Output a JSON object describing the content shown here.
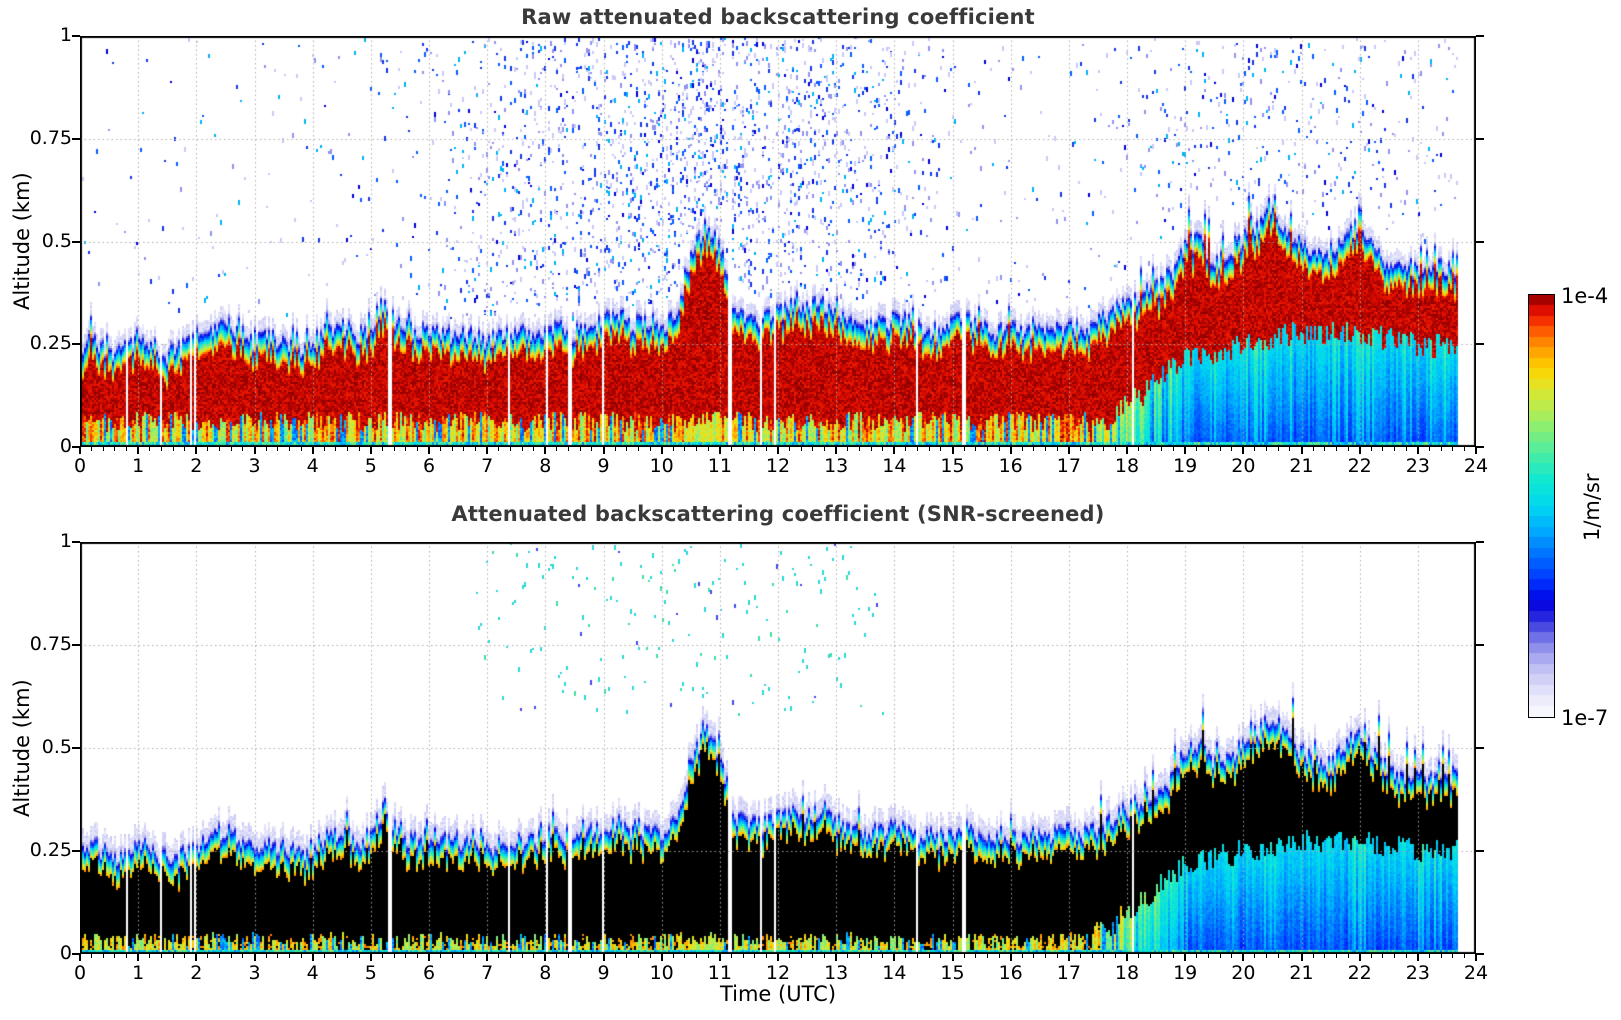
{
  "chart_data": [
    {
      "type": "heatmap",
      "title": "Raw attenuated backscattering coefficient",
      "xlabel": "",
      "ylabel": "Altitude (km)",
      "xlim": [
        0,
        24
      ],
      "ylim": [
        0,
        1
      ],
      "x_ticks": [
        0,
        1,
        2,
        3,
        4,
        5,
        6,
        7,
        8,
        9,
        10,
        11,
        12,
        13,
        14,
        15,
        16,
        17,
        18,
        19,
        20,
        21,
        22,
        23,
        24
      ],
      "x_minor_tick_step_hours": 0.2,
      "y_ticks": [
        0,
        0.25,
        0.5,
        0.75,
        1
      ],
      "y_tick_labels": [
        "0",
        "0.25",
        "0.5",
        "0.75",
        "1"
      ],
      "grid": "dotted, vertical each hour, horizontal at 0.25/0.5/0.75",
      "data_end_time_utc": 23.7,
      "core_render": "dark-red",
      "structure": {
        "layer_top_km": {
          "t_step_hours": 0.25,
          "values": [
            0.26,
            0.27,
            0.25,
            0.24,
            0.28,
            0.26,
            0.24,
            0.25,
            0.27,
            0.3,
            0.31,
            0.29,
            0.26,
            0.28,
            0.27,
            0.25,
            0.27,
            0.3,
            0.31,
            0.28,
            0.3,
            0.37,
            0.3,
            0.29,
            0.3,
            0.29,
            0.28,
            0.29,
            0.27,
            0.28,
            0.29,
            0.28,
            0.3,
            0.31,
            0.29,
            0.31,
            0.32,
            0.33,
            0.31,
            0.32,
            0.31,
            0.33,
            0.48,
            0.55,
            0.5,
            0.35,
            0.32,
            0.33,
            0.34,
            0.36,
            0.34,
            0.37,
            0.33,
            0.31,
            0.3,
            0.31,
            0.32,
            0.31,
            0.3,
            0.29,
            0.31,
            0.32,
            0.3,
            0.29,
            0.3,
            0.29,
            0.3,
            0.3,
            0.31,
            0.3,
            0.32,
            0.34,
            0.36,
            0.38,
            0.4,
            0.43,
            0.5,
            0.52,
            0.46,
            0.48,
            0.52,
            0.55,
            0.58,
            0.54,
            0.5,
            0.48,
            0.47,
            0.52,
            0.55,
            0.5,
            0.46,
            0.44,
            0.45,
            0.44,
            0.45,
            0.43
          ]
        },
        "layer_base_km": {
          "t_step_hours": 1,
          "values": [
            0,
            0,
            0,
            0,
            0,
            0,
            0,
            0,
            0,
            0,
            0,
            0,
            0,
            0,
            0,
            0,
            0,
            0.01,
            0.1,
            0.22,
            0.25,
            0.28,
            0.28,
            0.25,
            0.25
          ]
        },
        "plume_interval_utc": [
          10.45,
          11.05
        ],
        "warm_sublayer_until_utc": 17.2,
        "cool_sublayer_from_utc": 19.2,
        "data_gap_times_utc": [
          [
            0.82,
            0.03
          ],
          [
            1.4,
            0.03
          ],
          [
            1.92,
            0.03
          ],
          [
            1.99,
            0.03
          ],
          [
            5.33,
            0.04
          ],
          [
            7.37,
            0.03
          ],
          [
            8.02,
            0.03
          ],
          [
            8.44,
            0.07
          ],
          [
            9.0,
            0.03
          ],
          [
            9.66,
            0.03
          ],
          [
            11.17,
            0.05
          ],
          [
            11.72,
            0.03
          ],
          [
            11.96,
            0.03
          ],
          [
            14.4,
            0.03
          ],
          [
            15.2,
            0.04
          ],
          [
            18.11,
            0.04
          ]
        ]
      },
      "speckle_density_by_hour": [
        0.02,
        0.02,
        0.03,
        0.02,
        0.03,
        0.05,
        0.08,
        0.22,
        0.33,
        0.38,
        0.42,
        0.45,
        0.42,
        0.32,
        0.22,
        0.07,
        0.05,
        0.04,
        0.07,
        0.09,
        0.11,
        0.09,
        0.09,
        0.07
      ],
      "speckle_colors": [
        "#c9c9f7",
        "#9393ef",
        "#1636e8",
        "#0a5cff",
        "#00b4f4",
        "#0000d8"
      ],
      "colorbar": {
        "top_label": "1e-4",
        "bottom_label": "1e-7",
        "unit_label": "1/m/sr",
        "scale": "log",
        "n_discrete_steps": 40,
        "stops": [
          [
            0.0,
            "#fbfbfe"
          ],
          [
            0.03,
            "#f0f0fc"
          ],
          [
            0.07,
            "#dcdcf9"
          ],
          [
            0.11,
            "#c2c2f4"
          ],
          [
            0.15,
            "#9f9fee"
          ],
          [
            0.19,
            "#6d6de6"
          ],
          [
            0.23,
            "#2e2edf"
          ],
          [
            0.27,
            "#0000e0"
          ],
          [
            0.32,
            "#0032ff"
          ],
          [
            0.38,
            "#006eff"
          ],
          [
            0.44,
            "#00aaff"
          ],
          [
            0.5,
            "#00d8f0"
          ],
          [
            0.56,
            "#10e8d0"
          ],
          [
            0.62,
            "#48eda6"
          ],
          [
            0.68,
            "#86ef76"
          ],
          [
            0.73,
            "#b8ec4e"
          ],
          [
            0.78,
            "#e2e42a"
          ],
          [
            0.82,
            "#fbd500"
          ],
          [
            0.86,
            "#ffaa00"
          ],
          [
            0.9,
            "#ff7300"
          ],
          [
            0.93,
            "#fb3c00"
          ],
          [
            0.96,
            "#e31000"
          ],
          [
            0.98,
            "#b80300"
          ],
          [
            1.0,
            "#870000"
          ]
        ]
      }
    },
    {
      "type": "heatmap",
      "title": "Attenuated backscattering coefficient (SNR-screened)",
      "xlabel": "Time (UTC)",
      "ylabel": "Altitude (km)",
      "xlim": [
        0,
        24
      ],
      "ylim": [
        0,
        1
      ],
      "x_ticks": [
        0,
        1,
        2,
        3,
        4,
        5,
        6,
        7,
        8,
        9,
        10,
        11,
        12,
        13,
        14,
        15,
        16,
        17,
        18,
        19,
        20,
        21,
        22,
        23,
        24
      ],
      "y_ticks": [
        0,
        0.25,
        0.5,
        0.75,
        1
      ],
      "y_tick_labels": [
        "0",
        "0.25",
        "0.5",
        "0.75",
        "1"
      ],
      "grid": "dotted, vertical each hour, horizontal at 0.25/0.5/0.75",
      "data_end_time_utc": 23.7,
      "core_render": "black",
      "structure": "same layer structure and data gaps as panel 0",
      "speckle_density_by_hour": [
        0,
        0,
        0,
        0,
        0,
        0,
        0.005,
        0.02,
        0.035,
        0.04,
        0.045,
        0.045,
        0.04,
        0.03,
        0.012,
        0.004,
        0,
        0,
        0,
        0,
        0,
        0,
        0,
        0
      ],
      "speckle_colors": [
        "#2ed6d6",
        "#3fe0a0",
        "#4848e8"
      ],
      "colorbar": "shared with panel 0"
    }
  ]
}
